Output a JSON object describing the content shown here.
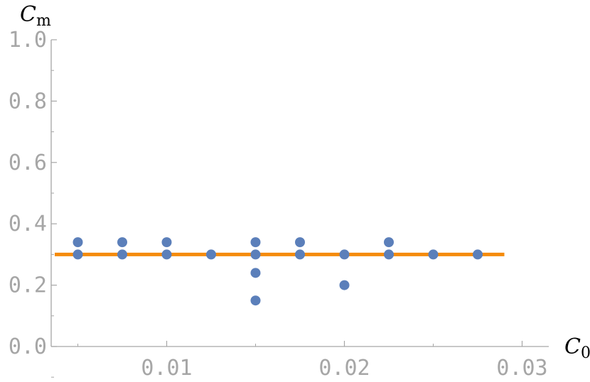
{
  "chart_data": {
    "type": "scatter",
    "xlabel": "C",
    "xlabel_sub": "0",
    "ylabel": "C",
    "ylabel_sub": "m",
    "xlim": [
      0.0035,
      0.0315
    ],
    "ylim": [
      0.0,
      1.0
    ],
    "x_ticks": [
      {
        "value": 0.01,
        "label": "0.01"
      },
      {
        "value": 0.02,
        "label": "0.02"
      },
      {
        "value": 0.03,
        "label": "0.03"
      }
    ],
    "y_ticks": [
      {
        "value": 0.0,
        "label": "0.0"
      },
      {
        "value": 0.2,
        "label": "0.2"
      },
      {
        "value": 0.4,
        "label": "0.4"
      },
      {
        "value": 0.6,
        "label": "0.6"
      },
      {
        "value": 0.8,
        "label": "0.8"
      },
      {
        "value": 1.0,
        "label": "1.0"
      }
    ],
    "grid": false,
    "series": [
      {
        "kind": "scatter",
        "color": "#5b7fba",
        "points": [
          {
            "x": 0.005,
            "y": 0.34
          },
          {
            "x": 0.005,
            "y": 0.3
          },
          {
            "x": 0.0075,
            "y": 0.34
          },
          {
            "x": 0.0075,
            "y": 0.3
          },
          {
            "x": 0.01,
            "y": 0.34
          },
          {
            "x": 0.01,
            "y": 0.3
          },
          {
            "x": 0.0125,
            "y": 0.3
          },
          {
            "x": 0.015,
            "y": 0.34
          },
          {
            "x": 0.015,
            "y": 0.3
          },
          {
            "x": 0.015,
            "y": 0.24
          },
          {
            "x": 0.015,
            "y": 0.15
          },
          {
            "x": 0.0175,
            "y": 0.34
          },
          {
            "x": 0.0175,
            "y": 0.3
          },
          {
            "x": 0.02,
            "y": 0.3
          },
          {
            "x": 0.02,
            "y": 0.2
          },
          {
            "x": 0.0225,
            "y": 0.34
          },
          {
            "x": 0.0225,
            "y": 0.3
          },
          {
            "x": 0.025,
            "y": 0.3
          },
          {
            "x": 0.0275,
            "y": 0.3
          }
        ]
      },
      {
        "kind": "line",
        "color": "#f58b0c",
        "points": [
          {
            "x": 0.0037,
            "y": 0.3
          },
          {
            "x": 0.029,
            "y": 0.3
          }
        ]
      }
    ]
  }
}
